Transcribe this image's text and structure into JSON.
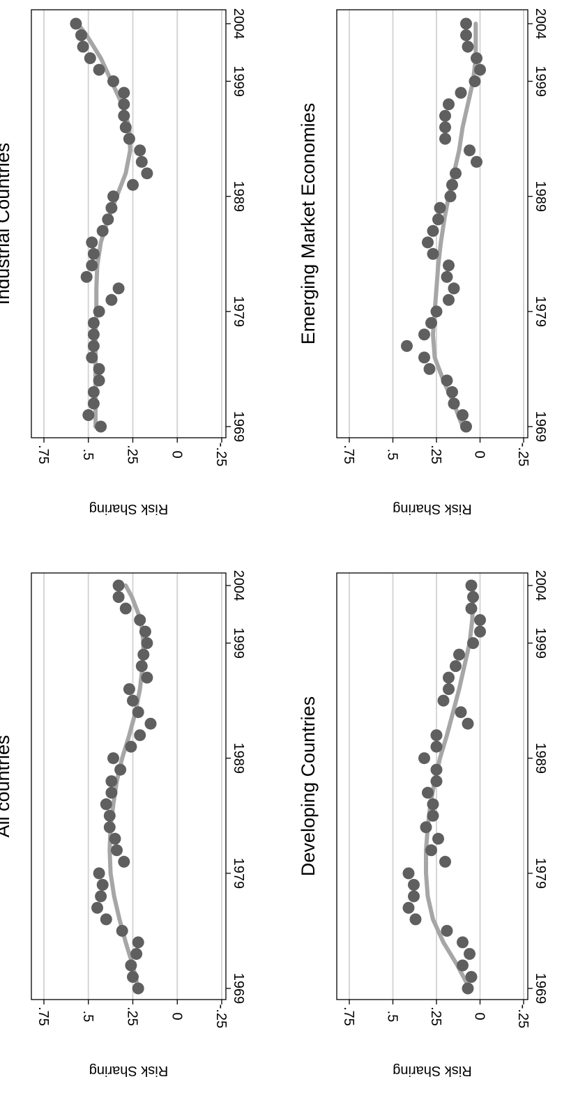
{
  "colors": {
    "points": "#5f5f5f",
    "trend": "#a6a6a6",
    "grid": "#d6d6d6"
  },
  "chart_data": [
    {
      "type": "scatter",
      "title": "All countries",
      "xlabel": "",
      "ylabel": "Risk Sharing",
      "xlim": [
        1969,
        2004
      ],
      "ylim": [
        -0.25,
        0.75
      ],
      "xticks": [
        1969,
        1979,
        1989,
        1999,
        2004
      ],
      "xtick_labels": [
        "1969",
        "1979",
        "1989",
        "1999",
        "2004"
      ],
      "yticks": [
        0.75,
        0.5,
        0.25,
        0,
        -0.25
      ],
      "ytick_labels": [
        ".75",
        ".5",
        ".25",
        "0",
        "-.25"
      ],
      "grid": true,
      "x": [
        1969,
        1970,
        1971,
        1972,
        1973,
        1974,
        1975,
        1976,
        1977,
        1978,
        1979,
        1980,
        1981,
        1982,
        1983,
        1984,
        1985,
        1986,
        1987,
        1988,
        1989,
        1990,
        1991,
        1992,
        1993,
        1994,
        1995,
        1996,
        1997,
        1998,
        1999,
        2000,
        2001,
        2002,
        2003,
        2004
      ],
      "y": [
        0.22,
        0.25,
        0.26,
        0.23,
        0.22,
        0.31,
        0.4,
        0.45,
        0.43,
        0.42,
        0.44,
        0.3,
        0.34,
        0.35,
        0.38,
        0.38,
        0.4,
        0.37,
        0.37,
        0.32,
        0.36,
        0.26,
        0.21,
        0.15,
        0.22,
        0.25,
        0.27,
        0.17,
        0.2,
        0.19,
        0.17,
        0.18,
        0.21,
        0.29,
        0.33,
        0.33
      ],
      "trend_x": [
        1969,
        1971,
        1973,
        1975,
        1977,
        1979,
        1981,
        1983,
        1985,
        1987,
        1989,
        1991,
        1993,
        1995,
        1997,
        1999,
        2001,
        2003,
        2004
      ],
      "trend_y": [
        0.22,
        0.25,
        0.29,
        0.325,
        0.355,
        0.375,
        0.38,
        0.375,
        0.36,
        0.34,
        0.31,
        0.27,
        0.235,
        0.21,
        0.195,
        0.19,
        0.205,
        0.255,
        0.29
      ]
    },
    {
      "type": "scatter",
      "title": "Industrial Countries",
      "xlabel": "",
      "ylabel": "Risk Sharing",
      "xlim": [
        1969,
        2004
      ],
      "ylim": [
        -0.25,
        0.75
      ],
      "xticks": [
        1969,
        1979,
        1989,
        1999,
        2004
      ],
      "xtick_labels": [
        "1969",
        "1979",
        "1989",
        "1999",
        "2004"
      ],
      "yticks": [
        0.75,
        0.5,
        0.25,
        0,
        -0.25
      ],
      "ytick_labels": [
        ".75",
        ".5",
        ".25",
        "0",
        "-.25"
      ],
      "grid": true,
      "x": [
        1969,
        1970,
        1971,
        1972,
        1973,
        1974,
        1975,
        1976,
        1977,
        1978,
        1979,
        1980,
        1981,
        1982,
        1983,
        1984,
        1985,
        1986,
        1987,
        1988,
        1989,
        1990,
        1991,
        1992,
        1993,
        1994,
        1995,
        1996,
        1997,
        1998,
        1999,
        2000,
        2001,
        2002,
        2003,
        2004
      ],
      "y": [
        0.43,
        0.5,
        0.47,
        0.47,
        0.44,
        0.44,
        0.48,
        0.47,
        0.47,
        0.47,
        0.44,
        0.37,
        0.33,
        0.51,
        0.48,
        0.47,
        0.48,
        0.42,
        0.39,
        0.37,
        0.36,
        0.25,
        0.17,
        0.2,
        0.21,
        0.27,
        0.29,
        0.3,
        0.3,
        0.3,
        0.36,
        0.44,
        0.49,
        0.53,
        0.54,
        0.57
      ],
      "trend_x": [
        1969,
        1971,
        1973,
        1975,
        1977,
        1979,
        1981,
        1983,
        1985,
        1987,
        1989,
        1991,
        1993,
        1995,
        1997,
        1999,
        2001,
        2003,
        2004
      ],
      "trend_y": [
        0.46,
        0.46,
        0.46,
        0.46,
        0.46,
        0.455,
        0.455,
        0.45,
        0.43,
        0.39,
        0.34,
        0.29,
        0.265,
        0.27,
        0.31,
        0.37,
        0.43,
        0.51,
        0.56
      ]
    },
    {
      "type": "scatter",
      "title": "Developing Countries",
      "xlabel": "",
      "ylabel": "Risk Sharing",
      "xlim": [
        1969,
        2004
      ],
      "ylim": [
        -0.25,
        0.75
      ],
      "xticks": [
        1969,
        1979,
        1989,
        1999,
        2004
      ],
      "xtick_labels": [
        "1969",
        "1979",
        "1989",
        "1999",
        "2004"
      ],
      "yticks": [
        0.75,
        0.5,
        0.25,
        0,
        -0.25
      ],
      "ytick_labels": [
        ".75",
        ".5",
        ".25",
        "0",
        "-.25"
      ],
      "grid": true,
      "x": [
        1969,
        1970,
        1971,
        1972,
        1973,
        1974,
        1975,
        1976,
        1977,
        1978,
        1979,
        1980,
        1981,
        1982,
        1983,
        1984,
        1985,
        1986,
        1987,
        1988,
        1989,
        1990,
        1991,
        1992,
        1993,
        1994,
        1995,
        1996,
        1997,
        1998,
        1999,
        2000,
        2001,
        2002,
        2003,
        2004
      ],
      "y": [
        0.07,
        0.05,
        0.1,
        0.06,
        0.1,
        0.19,
        0.37,
        0.41,
        0.38,
        0.38,
        0.41,
        0.2,
        0.28,
        0.24,
        0.31,
        0.27,
        0.27,
        0.3,
        0.25,
        0.25,
        0.32,
        0.25,
        0.25,
        0.07,
        0.11,
        0.21,
        0.18,
        0.18,
        0.14,
        0.12,
        0.04,
        0.0,
        0.0,
        0.05,
        0.04,
        0.05
      ],
      "trend_x": [
        1969,
        1971,
        1973,
        1975,
        1977,
        1979,
        1981,
        1983,
        1985,
        1987,
        1989,
        1991,
        1993,
        1995,
        1997,
        1999,
        2001,
        2003,
        2004
      ],
      "trend_y": [
        0.06,
        0.13,
        0.21,
        0.27,
        0.3,
        0.31,
        0.31,
        0.3,
        0.285,
        0.26,
        0.23,
        0.19,
        0.155,
        0.12,
        0.09,
        0.06,
        0.045,
        0.04,
        0.04
      ]
    },
    {
      "type": "scatter",
      "title": "Emerging Market Economies",
      "xlabel": "",
      "ylabel": "Risk Sharing",
      "xlim": [
        1969,
        2004
      ],
      "ylim": [
        -0.25,
        0.75
      ],
      "xticks": [
        1969,
        1979,
        1989,
        1999,
        2004
      ],
      "xtick_labels": [
        "1969",
        "1979",
        "1989",
        "1999",
        "2004"
      ],
      "yticks": [
        0.75,
        0.5,
        0.25,
        0,
        -0.25
      ],
      "ytick_labels": [
        ".75",
        ".5",
        ".25",
        "0",
        "-.25"
      ],
      "grid": true,
      "x": [
        1969,
        1970,
        1971,
        1972,
        1973,
        1974,
        1975,
        1976,
        1977,
        1978,
        1979,
        1980,
        1981,
        1982,
        1983,
        1984,
        1985,
        1986,
        1987,
        1988,
        1989,
        1990,
        1991,
        1992,
        1993,
        1994,
        1995,
        1996,
        1997,
        1998,
        1999,
        2000,
        2001,
        2002,
        2003,
        2004
      ],
      "y": [
        0.08,
        0.1,
        0.15,
        0.16,
        0.19,
        0.29,
        0.32,
        0.42,
        0.32,
        0.28,
        0.25,
        0.18,
        0.15,
        0.19,
        0.18,
        0.27,
        0.3,
        0.27,
        0.24,
        0.23,
        0.17,
        0.16,
        0.14,
        0.02,
        0.06,
        0.2,
        0.2,
        0.2,
        0.18,
        0.11,
        0.03,
        0.0,
        0.02,
        0.07,
        0.08,
        0.08
      ],
      "trend_x": [
        1969,
        1971,
        1973,
        1975,
        1977,
        1979,
        1981,
        1983,
        1985,
        1987,
        1989,
        1991,
        1993,
        1995,
        1997,
        1999,
        2001,
        2003,
        2004
      ],
      "trend_y": [
        0.1,
        0.15,
        0.21,
        0.26,
        0.27,
        0.26,
        0.25,
        0.24,
        0.225,
        0.205,
        0.18,
        0.15,
        0.12,
        0.1,
        0.07,
        0.04,
        0.025,
        0.025,
        0.025
      ]
    }
  ]
}
